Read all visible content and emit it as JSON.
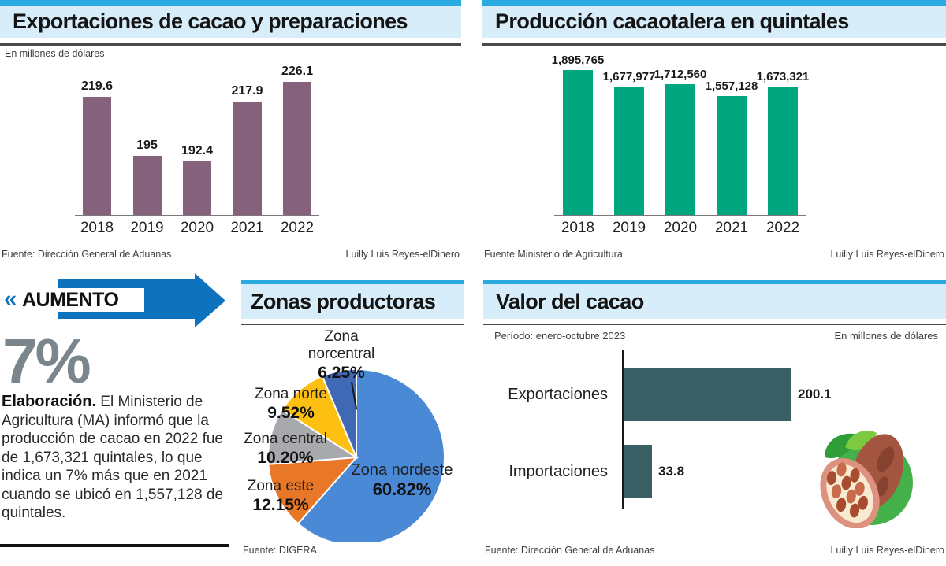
{
  "panels": {
    "exportaciones": {
      "title": "Exportaciones de cacao y preparaciones",
      "subtitle": "En millones de dólares",
      "source": "Fuente: Dirección General de Aduanas",
      "credit": "Luilly Luis Reyes-elDinero"
    },
    "produccion": {
      "title": "Producción cacaotalera en quintales",
      "source": "Fuente Ministerio de Agricultura",
      "credit": "Luilly Luis Reyes-elDinero"
    },
    "aumento": {
      "marker": "«",
      "banner": "AUMENTO",
      "big_number": "7%",
      "lead": "Elaboración.",
      "body": " El Ministerio de Agricultura (MA) informó que la producción de cacao en 2022 fue de 1,673,321 quintales, lo que indica un 7% más que en 2021 cuando se ubicó en 1,557,128 de quintales."
    },
    "zonas": {
      "title": "Zonas productoras",
      "source": "Fuente: DIGERA"
    },
    "valor": {
      "title": "Valor del cacao",
      "period": "Período: enero-octubre 2023",
      "units": "En millones de dólares",
      "source": "Fuente: Dirección General de Aduanas",
      "credit": "Luilly Luis Reyes-elDinero"
    }
  },
  "chart_data": [
    {
      "id": "exportaciones",
      "type": "bar",
      "title": "Exportaciones de cacao y preparaciones",
      "ylabel": "En millones de dólares",
      "categories": [
        "2018",
        "2019",
        "2020",
        "2021",
        "2022"
      ],
      "values": [
        219.6,
        195,
        192.4,
        217.9,
        226.1
      ],
      "value_labels": [
        "219.6",
        "195",
        "192.4",
        "217.9",
        "226.1"
      ],
      "bar_color": "#85617b",
      "ylim": [
        170,
        230
      ],
      "grid": false,
      "legend": "none"
    },
    {
      "id": "produccion",
      "type": "bar",
      "title": "Producción cacaotalera en quintales",
      "categories": [
        "2018",
        "2019",
        "2020",
        "2021",
        "2022"
      ],
      "values": [
        1895765,
        1677977,
        1712560,
        1557128,
        1673321
      ],
      "value_labels": [
        "1,895,765",
        "1,677,977",
        "1,712,560",
        "1,557,128",
        "1,673,321"
      ],
      "bar_color": "#00a77e",
      "ylim": [
        0,
        2100000
      ],
      "grid": false,
      "legend": "none"
    },
    {
      "id": "zonas",
      "type": "pie",
      "title": "Zonas productoras",
      "labels": [
        "Zona nordeste",
        "Zona este",
        "Zona central",
        "Zona norte",
        "Zona norcentral"
      ],
      "values": [
        60.82,
        12.15,
        10.2,
        9.52,
        6.25
      ],
      "value_labels": [
        "60.82%",
        "12.15%",
        "10.20%",
        "9.52%",
        "6.25%"
      ],
      "colors": [
        "#4a89d5",
        "#e87728",
        "#a7a9ac",
        "#fdc010",
        "#3f68b5"
      ],
      "start_angle": "12-oclock",
      "direction": "clockwise"
    },
    {
      "id": "valor",
      "type": "bar",
      "orientation": "horizontal",
      "title": "Valor del cacao",
      "period": "Período: enero-octubre 2023",
      "xlabel": "En millones de dólares",
      "categories": [
        "Exportaciones",
        "Importaciones"
      ],
      "values": [
        200.1,
        33.8
      ],
      "value_labels": [
        "200.1",
        "33.8"
      ],
      "bar_color": "#3a6066",
      "xlim": [
        0,
        210
      ],
      "grid": false,
      "legend": "none"
    }
  ],
  "colors": {
    "header_strip": "#29abe2",
    "header_band": "#d7edf9",
    "dark_rule": "#4a4a4a",
    "export_bar": "#85617b",
    "production_bar": "#00a77e",
    "value_bar": "#3a6066",
    "arrow_blue": "#0e72bd",
    "big_number_gray": "#7b868c",
    "pie_nordeste": "#4a89d5",
    "pie_este": "#e87728",
    "pie_central": "#a7a9ac",
    "pie_norte": "#fdc010",
    "pie_norcentral": "#3f68b5"
  }
}
